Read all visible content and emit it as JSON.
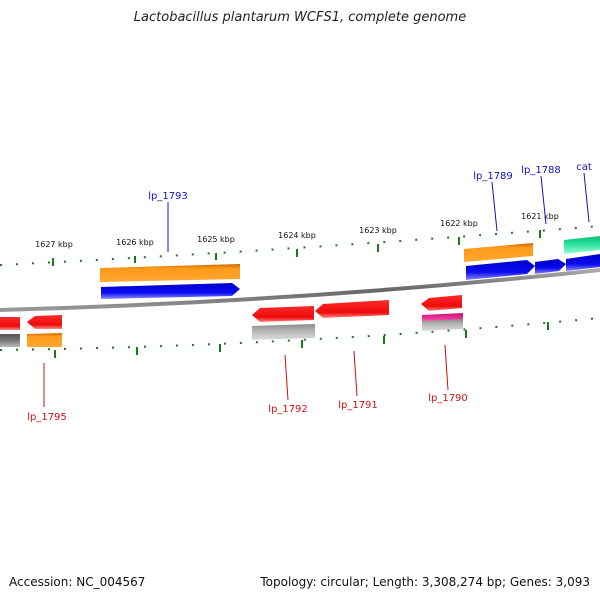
{
  "header": {
    "title": "Lactobacillus plantarum WCFS1, complete genome"
  },
  "footer": {
    "accession": "Accession: NC_004567",
    "summary": "Topology: circular; Length: 3,308,274 bp; Genes: 3,093"
  },
  "ruler": {
    "tick_labels": [
      "1627 kbp",
      "1626 kbp",
      "1625 kbp",
      "1624 kbp",
      "1623 kbp",
      "1622 kbp",
      "1621 kbp"
    ]
  },
  "genes": {
    "upper": [
      "lp_1793",
      "lp_1789",
      "lp_1788",
      "cat"
    ],
    "lower": [
      "lp_1795",
      "lp_1792",
      "lp_1791",
      "lp_1790"
    ]
  },
  "colors": {
    "upper_label": "#1010c0",
    "lower_label": "#cc1010",
    "tick": "#1a7a1a",
    "backbone": "#777777",
    "cds_blue": "#0a0af0",
    "cds_orange": "#ff9a1a",
    "cds_red": "#ee1010",
    "cds_teal": "#22dd99",
    "cds_grey": "#aaaaaa",
    "cds_dark_grey": "#777777",
    "cds_pink": "#ee3399"
  }
}
